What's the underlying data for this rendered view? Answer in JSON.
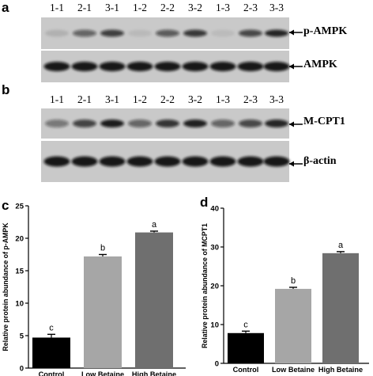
{
  "panels": {
    "a": "a",
    "b": "b",
    "c": "c",
    "d": "d"
  },
  "blots": {
    "lane_labels": [
      "1-1",
      "2-1",
      "3-1",
      "1-2",
      "2-2",
      "3-2",
      "1-3",
      "2-3",
      "3-3"
    ],
    "a": {
      "top_label": "p-AMPK",
      "bottom_label": "AMPK",
      "top_intensity": [
        0.12,
        0.55,
        0.75,
        0.08,
        0.6,
        0.78,
        0.07,
        0.7,
        0.88
      ],
      "bottom_intensity": [
        0.95,
        0.95,
        0.95,
        0.95,
        0.95,
        0.95,
        0.95,
        0.95,
        0.95
      ]
    },
    "b": {
      "top_label": "M-CPT1",
      "bottom_label": "β-actin",
      "top_intensity": [
        0.45,
        0.72,
        0.92,
        0.55,
        0.8,
        0.9,
        0.55,
        0.7,
        0.88
      ],
      "bottom_intensity": [
        0.95,
        0.95,
        0.95,
        0.95,
        0.95,
        0.95,
        0.95,
        0.95,
        0.95
      ]
    },
    "colors": {
      "blot_bg": "#c9c9c9",
      "band": "#111111"
    }
  },
  "chart_data": [
    {
      "type": "bar",
      "panel": "c",
      "categories": [
        "Control",
        "Low Betaine",
        "High Betaine"
      ],
      "values": [
        4.7,
        17.2,
        20.9
      ],
      "errors": [
        0.5,
        0.3,
        0.2
      ],
      "letters": [
        "c",
        "b",
        "a"
      ],
      "colors": [
        "#000000",
        "#a6a6a6",
        "#6f6f6f"
      ],
      "ylabel": "Relative protein abundance of p-AMPK",
      "ylim": [
        0,
        25
      ],
      "yticks": [
        "0",
        "5",
        "10",
        "15",
        "20",
        "25"
      ]
    },
    {
      "type": "bar",
      "panel": "d",
      "categories": [
        "Control",
        "Low Betaine",
        "High Betaine"
      ],
      "values": [
        7.8,
        19.2,
        28.4
      ],
      "errors": [
        0.5,
        0.4,
        0.4
      ],
      "letters": [
        "c",
        "b",
        "a"
      ],
      "colors": [
        "#000000",
        "#a6a6a6",
        "#6f6f6f"
      ],
      "ylabel": "Relative protein abundance of MCPT1",
      "ylim": [
        0,
        40
      ],
      "yticks": [
        "0",
        "10",
        "20",
        "30",
        "40"
      ]
    }
  ]
}
